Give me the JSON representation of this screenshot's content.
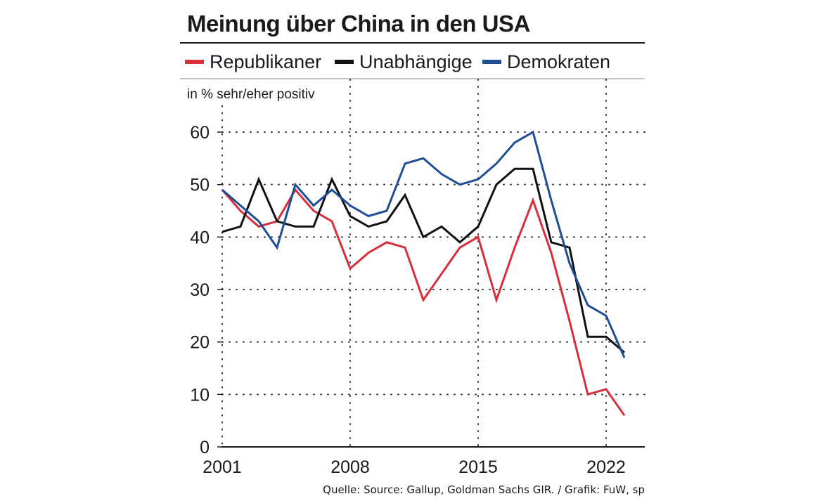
{
  "chart_data": {
    "type": "line",
    "title": "Meinung über China in den USA",
    "ylabel": "in % sehr/eher positiv",
    "xlabel": "",
    "xlim": [
      2001,
      2024
    ],
    "ylim": [
      0,
      65
    ],
    "x_ticks": [
      2001,
      2008,
      2015,
      2022
    ],
    "x_tick_labels": [
      "2001",
      "2008",
      "2015",
      "2022"
    ],
    "y_ticks": [
      0,
      10,
      20,
      30,
      40,
      50,
      60
    ],
    "y_tick_labels": [
      "0",
      "10",
      "20",
      "30",
      "40",
      "50",
      "60"
    ],
    "grid": "dotted",
    "legend_position": "top",
    "source": "Quelle: Source: Gallup, Goldman Sachs GIR. / Grafik: FuW, sp",
    "x": [
      2001,
      2002,
      2003,
      2004,
      2005,
      2006,
      2007,
      2008,
      2009,
      2010,
      2011,
      2012,
      2013,
      2014,
      2015,
      2016,
      2017,
      2018,
      2019,
      2020,
      2021,
      2022,
      2023
    ],
    "series": [
      {
        "name": "Republikaner",
        "color": "#d7303c",
        "values": [
          49,
          45,
          42,
          43,
          49,
          45,
          43,
          34,
          37,
          39,
          38,
          28,
          33,
          38,
          40,
          28,
          38,
          47,
          37,
          24,
          10,
          11,
          6
        ]
      },
      {
        "name": "Unabhängige",
        "color": "#111111",
        "values": [
          41,
          42,
          51,
          43,
          42,
          42,
          51,
          44,
          42,
          43,
          48,
          40,
          42,
          39,
          42,
          50,
          53,
          53,
          39,
          38,
          21,
          21,
          18
        ]
      },
      {
        "name": "Demokraten",
        "color": "#1f4e96",
        "values": [
          49,
          46,
          43,
          38,
          50,
          46,
          49,
          46,
          44,
          45,
          54,
          55,
          52,
          50,
          51,
          54,
          58,
          60,
          47,
          35,
          27,
          25,
          17
        ]
      }
    ]
  }
}
